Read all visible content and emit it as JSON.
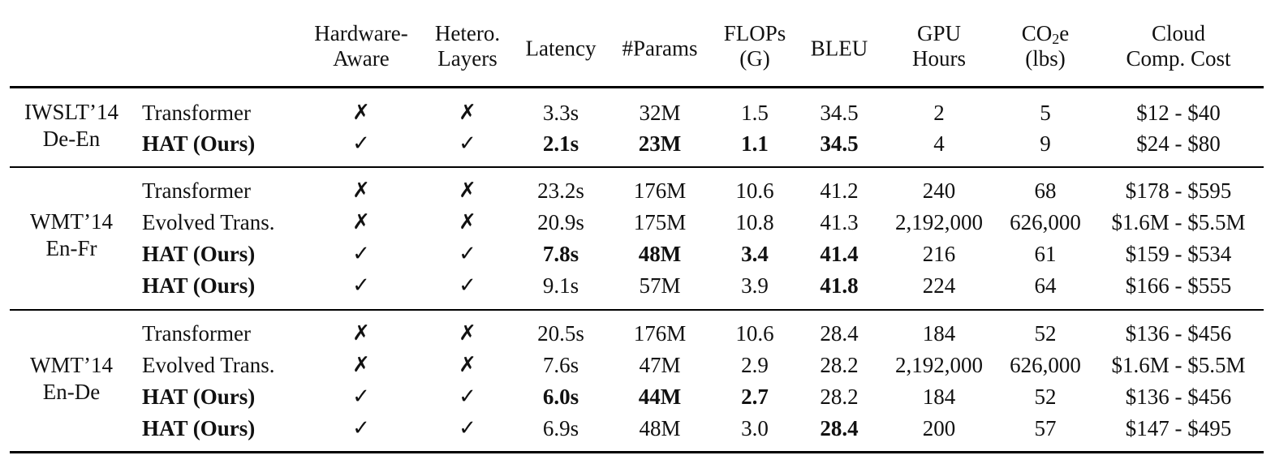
{
  "header": {
    "hardware_aware": [
      "Hardware-",
      "Aware"
    ],
    "hetero_layers": [
      "Hetero.",
      "Layers"
    ],
    "latency": "Latency",
    "params": "#Params",
    "flops": [
      "FLOPs",
      "(G)"
    ],
    "bleu": "BLEU",
    "gpu_hours": [
      "GPU",
      "Hours"
    ],
    "co2": {
      "pre": "CO",
      "sub": "2",
      "post": "e",
      "line2": "(lbs)"
    },
    "cloud_cost": [
      "Cloud",
      "Comp. Cost"
    ]
  },
  "symbols": {
    "yes": "✓",
    "no": "✗"
  },
  "groups": [
    {
      "dataset": [
        "IWSLT’14",
        "De-En"
      ],
      "rows": [
        {
          "model": "Transformer",
          "model_bold": false,
          "hw": "no",
          "het": "no",
          "latency": "3.3s",
          "params": "32M",
          "flops": "1.5",
          "bleu": "34.5",
          "gpu": "2",
          "co2": "5",
          "cost": "$12 - $40",
          "bold": []
        },
        {
          "model": "HAT (Ours)",
          "model_bold": true,
          "hw": "yes",
          "het": "yes",
          "latency": "2.1s",
          "params": "23M",
          "flops": "1.1",
          "bleu": "34.5",
          "gpu": "4",
          "co2": "9",
          "cost": "$24 - $80",
          "bold": [
            "latency",
            "params",
            "flops",
            "bleu"
          ]
        }
      ]
    },
    {
      "dataset": [
        "WMT’14",
        "En-Fr"
      ],
      "rows": [
        {
          "model": "Transformer",
          "model_bold": false,
          "hw": "no",
          "het": "no",
          "latency": "23.2s",
          "params": "176M",
          "flops": "10.6",
          "bleu": "41.2",
          "gpu": "240",
          "co2": "68",
          "cost": "$178 - $595",
          "bold": []
        },
        {
          "model": "Evolved Trans.",
          "model_bold": false,
          "hw": "no",
          "het": "no",
          "latency": "20.9s",
          "params": "175M",
          "flops": "10.8",
          "bleu": "41.3",
          "gpu": "2,192,000",
          "co2": "626,000",
          "cost": "$1.6M - $5.5M",
          "bold": []
        },
        {
          "model": "HAT (Ours)",
          "model_bold": true,
          "hw": "yes",
          "het": "yes",
          "latency": "7.8s",
          "params": "48M",
          "flops": "3.4",
          "bleu": "41.4",
          "gpu": "216",
          "co2": "61",
          "cost": "$159 - $534",
          "bold": [
            "latency",
            "params",
            "flops",
            "bleu"
          ]
        },
        {
          "model": "HAT (Ours)",
          "model_bold": true,
          "hw": "yes",
          "het": "yes",
          "latency": "9.1s",
          "params": "57M",
          "flops": "3.9",
          "bleu": "41.8",
          "gpu": "224",
          "co2": "64",
          "cost": "$166 - $555",
          "bold": [
            "bleu"
          ]
        }
      ]
    },
    {
      "dataset": [
        "WMT’14",
        "En-De"
      ],
      "rows": [
        {
          "model": "Transformer",
          "model_bold": false,
          "hw": "no",
          "het": "no",
          "latency": "20.5s",
          "params": "176M",
          "flops": "10.6",
          "bleu": "28.4",
          "gpu": "184",
          "co2": "52",
          "cost": "$136 - $456",
          "bold": []
        },
        {
          "model": "Evolved Trans.",
          "model_bold": false,
          "hw": "no",
          "het": "no",
          "latency": "7.6s",
          "params": "47M",
          "flops": "2.9",
          "bleu": "28.2",
          "gpu": "2,192,000",
          "co2": "626,000",
          "cost": "$1.6M - $5.5M",
          "bold": []
        },
        {
          "model": "HAT (Ours)",
          "model_bold": true,
          "hw": "yes",
          "het": "yes",
          "latency": "6.0s",
          "params": "44M",
          "flops": "2.7",
          "bleu": "28.2",
          "gpu": "184",
          "co2": "52",
          "cost": "$136 - $456",
          "bold": [
            "latency",
            "params",
            "flops"
          ]
        },
        {
          "model": "HAT (Ours)",
          "model_bold": true,
          "hw": "yes",
          "het": "yes",
          "latency": "6.9s",
          "params": "48M",
          "flops": "3.0",
          "bleu": "28.4",
          "gpu": "200",
          "co2": "57",
          "cost": "$147 - $495",
          "bold": [
            "bleu"
          ]
        }
      ]
    }
  ]
}
